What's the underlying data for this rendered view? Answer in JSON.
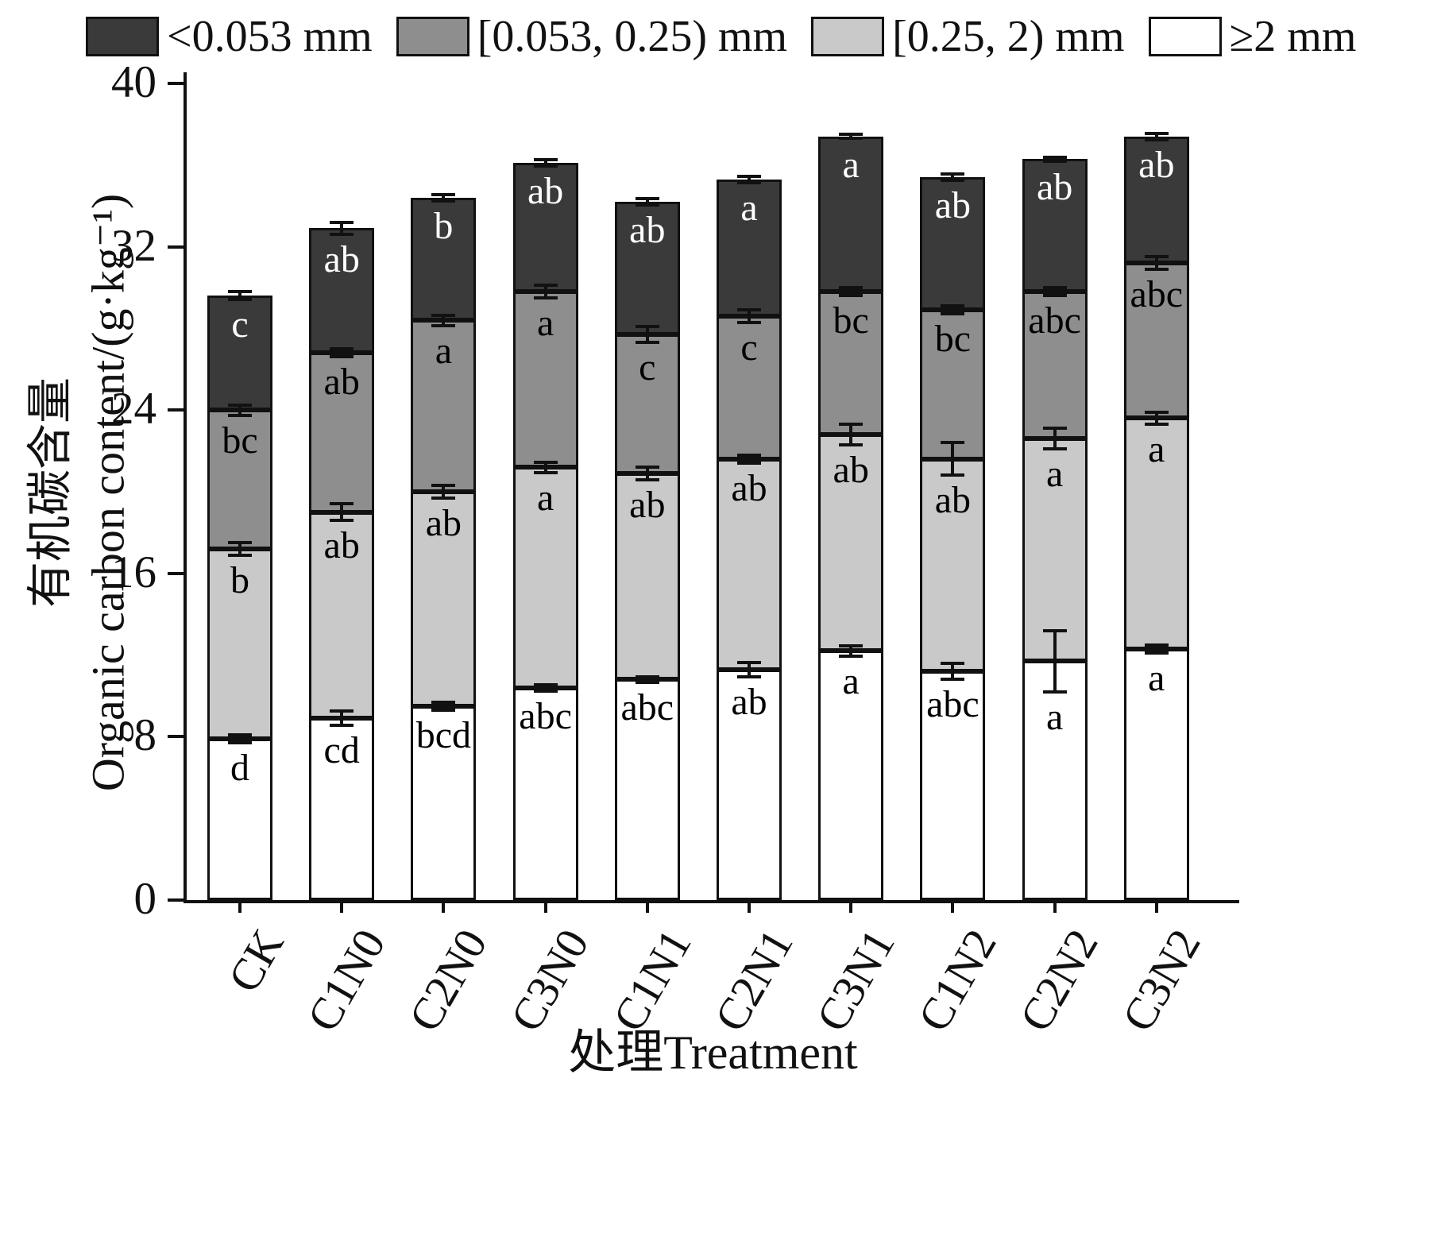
{
  "chart_data": {
    "type": "bar",
    "stacked": true,
    "title": "",
    "xlabel": "处理Treatment",
    "ylabel_cn": "有机碳含量",
    "ylabel_en": "Organic carbon content/(g·kg⁻¹)",
    "ylim": [
      0,
      40
    ],
    "yticks": [
      0,
      8,
      16,
      24,
      32,
      40
    ],
    "grid": false,
    "legend_position": "top",
    "categories": [
      "CK",
      "C1N0",
      "C2N0",
      "C3N0",
      "C1N1",
      "C2N1",
      "C3N1",
      "C1N2",
      "C2N2",
      "C3N2"
    ],
    "series": [
      {
        "name": "≥2 mm",
        "color": "#ffffff",
        "label_color": "#000000",
        "values": [
          7.9,
          8.9,
          9.5,
          10.4,
          10.8,
          11.3,
          12.2,
          11.2,
          11.7,
          12.3
        ],
        "errors": [
          0.2,
          0.35,
          0.2,
          0.15,
          0.15,
          0.35,
          0.25,
          0.4,
          1.5,
          0.2
        ],
        "sig_labels": [
          "d",
          "cd",
          "bcd",
          "abc",
          "abc",
          "ab",
          "a",
          "abc",
          "a",
          "a"
        ]
      },
      {
        "name": "[0.25, 2) mm",
        "color": "#c9c9c9",
        "label_color": "#000000",
        "values": [
          9.3,
          10.1,
          10.5,
          10.8,
          10.1,
          10.3,
          10.6,
          10.4,
          10.9,
          11.3
        ],
        "errors": [
          0.3,
          0.4,
          0.3,
          0.25,
          0.3,
          0.2,
          0.5,
          0.8,
          0.5,
          0.3
        ],
        "sig_labels": [
          "b",
          "ab",
          "ab",
          "a",
          "ab",
          "ab",
          "ab",
          "ab",
          "a",
          "a"
        ]
      },
      {
        "name": "[0.053, 0.25) mm",
        "color": "#8e8e8e",
        "label_color": "#000000",
        "values": [
          6.8,
          7.8,
          8.4,
          8.6,
          6.8,
          7.0,
          7.0,
          7.3,
          7.2,
          7.6
        ],
        "errors": [
          0.25,
          0.2,
          0.25,
          0.3,
          0.4,
          0.3,
          0.2,
          0.2,
          0.2,
          0.3
        ],
        "sig_labels": [
          "bc",
          "ab",
          "a",
          "a",
          "c",
          "c",
          "bc",
          "bc",
          "abc",
          "abc"
        ]
      },
      {
        "name": "<0.053 mm",
        "color": "#3a3a3a",
        "label_color": "#ffffff",
        "values": [
          5.6,
          6.1,
          6.0,
          6.3,
          6.5,
          6.7,
          7.6,
          6.5,
          6.5,
          6.2
        ],
        "errors": [
          0.2,
          0.3,
          0.15,
          0.15,
          0.15,
          0.15,
          0.1,
          0.15,
          0.1,
          0.15
        ],
        "sig_labels": [
          "c",
          "ab",
          "b",
          "ab",
          "ab",
          "a",
          "a",
          "ab",
          "ab",
          "ab"
        ]
      }
    ],
    "legend": [
      {
        "label": "<0.053 mm",
        "color": "#3a3a3a"
      },
      {
        "label": "[0.053, 0.25) mm",
        "color": "#8e8e8e"
      },
      {
        "label": "[0.25, 2) mm",
        "color": "#c9c9c9"
      },
      {
        "label": "≥2 mm",
        "color": "#ffffff"
      }
    ]
  }
}
